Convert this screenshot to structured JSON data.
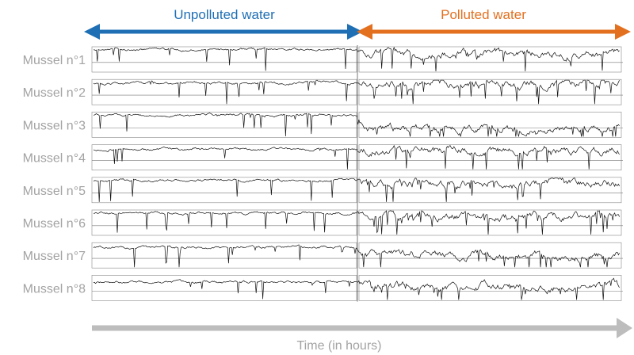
{
  "chart_data": {
    "type": "line",
    "header_left": "Unpolluted water",
    "header_right": "Polluted water",
    "xlabel": "Time (in hours)",
    "series": [
      {
        "name": "Mussel n°1",
        "level_unpolluted": 0.95,
        "level_polluted": 0.8
      },
      {
        "name": "Mussel n°2",
        "level_unpolluted": 0.92,
        "level_polluted": 0.88
      },
      {
        "name": "Mussel n°3",
        "level_unpolluted": 0.95,
        "level_polluted": 0.35
      },
      {
        "name": "Mussel n°4",
        "level_unpolluted": 0.88,
        "level_polluted": 0.85
      },
      {
        "name": "Mussel n°5",
        "level_unpolluted": 0.93,
        "level_polluted": 0.85
      },
      {
        "name": "Mussel n°6",
        "level_unpolluted": 0.95,
        "level_polluted": 0.78
      },
      {
        "name": "Mussel n°7",
        "level_unpolluted": 0.88,
        "level_polluted": 0.55
      },
      {
        "name": "Mussel n°8",
        "level_unpolluted": 0.8,
        "level_polluted": 0.6
      }
    ],
    "colors": {
      "unpolluted_arrow": "#1f6fb5",
      "polluted_arrow": "#e3701f",
      "label_gray": "#a3a3a3",
      "time_arrow": "#bdbdbd",
      "trace": "#111111"
    }
  }
}
